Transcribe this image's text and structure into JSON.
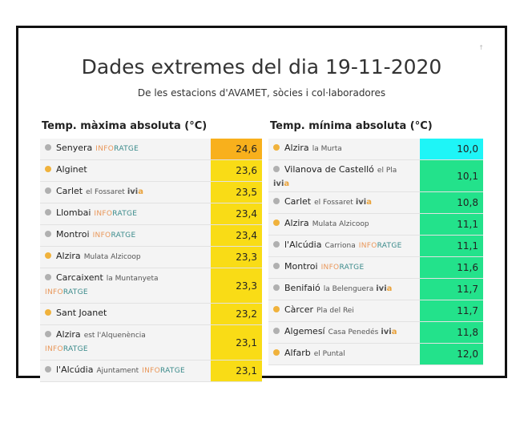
{
  "title": "Dades extremes del dia 19-11-2020",
  "subtitle": "De les estacions d'AVAMET, sòcies i col·laboradores",
  "corner_mark": "↑",
  "colors": {
    "dot_grey": "#b0b0b0",
    "dot_orange": "#f0b23c",
    "max_top": "#f8b01c",
    "max_rest": "#f9dc16",
    "min_top": "#1ef5f7",
    "min_rest": "#23e28b"
  },
  "max_table": {
    "title": "Temp. màxima absoluta (°C)",
    "rows": [
      {
        "name": "Senyera",
        "sub": "",
        "inf": [
          "INFO",
          "RATGE"
        ],
        "ivia": "",
        "dot": "grey",
        "value": "24,6",
        "highlight": "top"
      },
      {
        "name": "Alginet",
        "sub": "",
        "inf": null,
        "ivia": "",
        "dot": "orange",
        "value": "23,6",
        "highlight": "rest"
      },
      {
        "name": "Carlet",
        "sub": "el Fossaret",
        "inf": null,
        "ivia": "ivia",
        "dot": "grey",
        "value": "23,5",
        "highlight": "rest"
      },
      {
        "name": "Llombai",
        "sub": "",
        "inf": [
          "INFO",
          "RATGE"
        ],
        "ivia": "",
        "dot": "grey",
        "value": "23,4",
        "highlight": "rest"
      },
      {
        "name": "Montroi",
        "sub": "",
        "inf": [
          "INFO",
          "RATGE"
        ],
        "ivia": "",
        "dot": "grey",
        "value": "23,4",
        "highlight": "rest"
      },
      {
        "name": "Alzira",
        "sub": "Mulata Alzicoop",
        "inf": null,
        "ivia": "",
        "dot": "orange",
        "value": "23,3",
        "highlight": "rest"
      },
      {
        "name": "Carcaixent",
        "sub": "la Muntanyeta",
        "inf2": [
          "INFO",
          "RATGE"
        ],
        "inf": null,
        "ivia": "",
        "dot": "grey",
        "value": "23,3",
        "highlight": "rest",
        "tall": true
      },
      {
        "name": "Sant Joanet",
        "sub": "",
        "inf": null,
        "ivia": "",
        "dot": "orange",
        "value": "23,2",
        "highlight": "rest"
      },
      {
        "name": "Alzira",
        "sub": "est l'Alquenència",
        "inf2": [
          "INFO",
          "RATGE"
        ],
        "inf": null,
        "ivia": "",
        "dot": "grey",
        "value": "23,1",
        "highlight": "rest",
        "tall": true
      },
      {
        "name": "l'Alcúdia",
        "sub": "Ajuntament",
        "inf": [
          "INFO",
          "RATGE"
        ],
        "ivia": "",
        "dot": "grey",
        "value": "23,1",
        "highlight": "rest"
      }
    ]
  },
  "min_table": {
    "title": "Temp. mínima absoluta (°C)",
    "rows": [
      {
        "name": "Alzira",
        "sub": "la Murta",
        "inf": null,
        "ivia": "",
        "dot": "orange",
        "value": "10,0",
        "highlight": "top"
      },
      {
        "name": "Vilanova de Castelló",
        "sub": "el Pla",
        "inf": null,
        "ivia2": "ivia",
        "ivia": "",
        "dot": "grey",
        "value": "10,1",
        "highlight": "rest",
        "tall": true
      },
      {
        "name": "Carlet",
        "sub": "el Fossaret",
        "inf": null,
        "ivia": "ivia",
        "dot": "grey",
        "value": "10,8",
        "highlight": "rest"
      },
      {
        "name": "Alzira",
        "sub": "Mulata Alzicoop",
        "inf": null,
        "ivia": "",
        "dot": "orange",
        "value": "11,1",
        "highlight": "rest"
      },
      {
        "name": "l'Alcúdia",
        "sub": "Carriona",
        "inf": [
          "INFO",
          "RATGE"
        ],
        "ivia": "",
        "dot": "grey",
        "value": "11,1",
        "highlight": "rest"
      },
      {
        "name": "Montroi",
        "sub": "",
        "inf": [
          "INFO",
          "RATGE"
        ],
        "ivia": "",
        "dot": "grey",
        "value": "11,6",
        "highlight": "rest"
      },
      {
        "name": "Benifaió",
        "sub": "la Belenguera",
        "inf": null,
        "ivia": "ivia",
        "dot": "grey",
        "value": "11,7",
        "highlight": "rest"
      },
      {
        "name": "Càrcer",
        "sub": "Pla del Rei",
        "inf": null,
        "ivia": "",
        "dot": "orange",
        "value": "11,7",
        "highlight": "rest"
      },
      {
        "name": "Algemesí",
        "sub": "Casa Penedés",
        "inf": null,
        "ivia": "ivia",
        "dot": "grey",
        "value": "11,8",
        "highlight": "rest"
      },
      {
        "name": "Alfarb",
        "sub": "el Puntal",
        "inf": null,
        "ivia": "",
        "dot": "orange",
        "value": "12,0",
        "highlight": "rest"
      }
    ]
  }
}
